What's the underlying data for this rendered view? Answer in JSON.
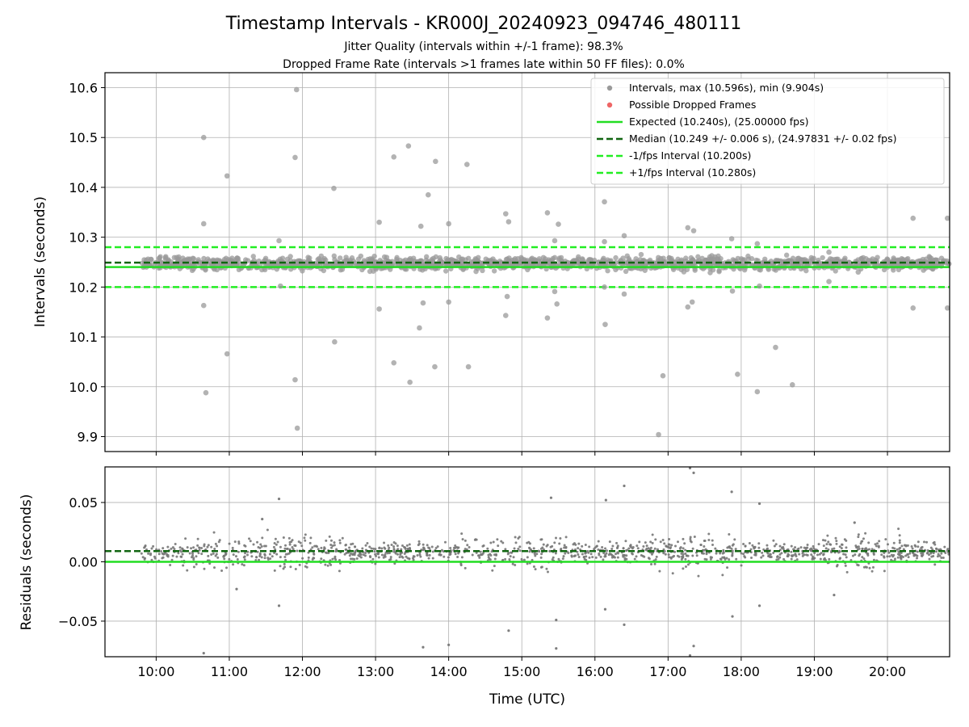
{
  "figure": {
    "title": "Timestamp Intervals - KR000J_20240923_094746_480111",
    "subtitle_line1": "Jitter Quality (intervals within +/-1 frame): 98.3%",
    "subtitle_line2": "Dropped Frame Rate (intervals >1 frames late within 50 FF files): 0.0%"
  },
  "chart_data": [
    {
      "type": "scatter",
      "ylabel": "Intervals (seconds)",
      "xlabel": "",
      "xlim": [
        9.3,
        20.85
      ],
      "ylim": [
        9.87,
        10.63
      ],
      "grid": true,
      "legend_position": "top-right",
      "x_ticks": [
        10,
        11,
        12,
        13,
        14,
        15,
        16,
        17,
        18,
        19,
        20
      ],
      "x_tick_labels": [
        "10:00",
        "11:00",
        "12:00",
        "13:00",
        "14:00",
        "15:00",
        "16:00",
        "17:00",
        "18:00",
        "19:00",
        "20:00"
      ],
      "y_ticks": [
        9.9,
        10.0,
        10.1,
        10.2,
        10.3,
        10.4,
        10.5,
        10.6
      ],
      "y_tick_labels": [
        "9.9",
        "10.0",
        "10.1",
        "10.2",
        "10.3",
        "10.4",
        "10.5",
        "10.6"
      ],
      "band": {
        "name": "Intervals (dense cluster)",
        "x_range": [
          9.8,
          20.85
        ],
        "y_center": 10.247,
        "y_spread": 0.012
      },
      "reference_lines": [
        {
          "name": "Expected (10.240s), (25.00000 fps)",
          "y": 10.24,
          "color": "#22dd22",
          "style": "solid"
        },
        {
          "name": "Median (10.249 +/- 0.006 s), (24.97831 +/- 0.02 fps)",
          "y": 10.249,
          "color": "#116611",
          "style": "dashed"
        },
        {
          "name": "-1/fps Interval (10.200s)",
          "y": 10.2,
          "color": "#22ee22",
          "style": "dashed"
        },
        {
          "name": "+1/fps Interval (10.280s)",
          "y": 10.28,
          "color": "#22ee22",
          "style": "dashed"
        }
      ],
      "series": [
        {
          "name": "Intervals, max (10.596s), min (9.904s)",
          "color": "#9a9a9a",
          "points": [
            [
              10.65,
              10.5
            ],
            [
              10.97,
              10.423
            ],
            [
              10.65,
              10.327
            ],
            [
              10.65,
              10.163
            ],
            [
              10.97,
              10.066
            ],
            [
              10.68,
              9.988
            ],
            [
              11.9,
              10.46
            ],
            [
              11.92,
              10.596
            ],
            [
              11.93,
              9.917
            ],
            [
              11.9,
              10.014
            ],
            [
              11.68,
              10.293
            ],
            [
              11.7,
              10.202
            ],
            [
              12.43,
              10.398
            ],
            [
              12.44,
              10.09
            ],
            [
              13.05,
              10.33
            ],
            [
              13.05,
              10.156
            ],
            [
              13.25,
              10.461
            ],
            [
              13.25,
              10.048
            ],
            [
              13.45,
              10.483
            ],
            [
              13.47,
              10.009
            ],
            [
              13.72,
              10.385
            ],
            [
              13.62,
              10.322
            ],
            [
              13.65,
              10.168
            ],
            [
              13.6,
              10.118
            ],
            [
              13.82,
              10.452
            ],
            [
              13.81,
              10.04
            ],
            [
              14.0,
              10.327
            ],
            [
              14.0,
              10.17
            ],
            [
              14.25,
              10.446
            ],
            [
              14.27,
              10.04
            ],
            [
              14.78,
              10.347
            ],
            [
              14.82,
              10.331
            ],
            [
              14.8,
              10.181
            ],
            [
              14.78,
              10.143
            ],
            [
              15.35,
              10.349
            ],
            [
              15.5,
              10.326
            ],
            [
              15.45,
              10.293
            ],
            [
              15.45,
              10.191
            ],
            [
              15.48,
              10.166
            ],
            [
              15.35,
              10.138
            ],
            [
              16.13,
              10.371
            ],
            [
              16.13,
              10.291
            ],
            [
              16.13,
              10.2
            ],
            [
              16.14,
              10.125
            ],
            [
              16.4,
              10.303
            ],
            [
              16.4,
              10.186
            ],
            [
              16.87,
              9.904
            ],
            [
              16.93,
              10.022
            ],
            [
              17.27,
              10.319
            ],
            [
              17.35,
              10.313
            ],
            [
              17.33,
              10.17
            ],
            [
              17.27,
              10.16
            ],
            [
              17.87,
              10.297
            ],
            [
              17.88,
              10.192
            ],
            [
              17.95,
              10.025
            ],
            [
              18.22,
              10.287
            ],
            [
              18.25,
              10.202
            ],
            [
              18.22,
              9.99
            ],
            [
              18.47,
              10.079
            ],
            [
              18.7,
              10.004
            ],
            [
              19.2,
              10.27
            ],
            [
              19.2,
              10.211
            ],
            [
              19.6,
              10.23
            ],
            [
              20.35,
              10.338
            ],
            [
              20.35,
              10.158
            ],
            [
              20.82,
              10.338
            ],
            [
              20.82,
              10.158
            ]
          ]
        },
        {
          "name": "Possible Dropped Frames",
          "color": "#ee6666",
          "points": []
        }
      ]
    },
    {
      "type": "scatter",
      "ylabel": "Residuals (seconds)",
      "xlabel": "Time (UTC)",
      "xlim": [
        9.3,
        20.85
      ],
      "ylim": [
        -0.08,
        0.08
      ],
      "grid": true,
      "x_ticks": [
        10,
        11,
        12,
        13,
        14,
        15,
        16,
        17,
        18,
        19,
        20
      ],
      "x_tick_labels": [
        "10:00",
        "11:00",
        "12:00",
        "13:00",
        "14:00",
        "15:00",
        "16:00",
        "17:00",
        "18:00",
        "19:00",
        "20:00"
      ],
      "y_ticks": [
        -0.05,
        0.0,
        0.05
      ],
      "y_tick_labels": [
        "−0.05",
        "0.00",
        "0.05"
      ],
      "band": {
        "name": "Residuals (dense cluster)",
        "x_range": [
          9.8,
          20.85
        ],
        "y_center": 0.008,
        "y_spread": 0.008
      },
      "reference_lines": [
        {
          "name": "zero",
          "y": 0.0,
          "color": "#22dd22",
          "style": "solid"
        },
        {
          "name": "median offset",
          "y": 0.009,
          "color": "#116611",
          "style": "dashed"
        }
      ],
      "series": [
        {
          "name": "Residual outliers",
          "color": "#777777",
          "points": [
            [
              10.65,
              -0.077
            ],
            [
              11.1,
              -0.023
            ],
            [
              11.45,
              0.036
            ],
            [
              11.68,
              0.053
            ],
            [
              11.68,
              -0.037
            ],
            [
              13.65,
              -0.072
            ],
            [
              14.0,
              -0.07
            ],
            [
              14.82,
              -0.058
            ],
            [
              15.4,
              0.054
            ],
            [
              15.47,
              -0.049
            ],
            [
              15.47,
              -0.073
            ],
            [
              16.15,
              0.052
            ],
            [
              16.14,
              -0.04
            ],
            [
              16.4,
              0.064
            ],
            [
              16.4,
              -0.053
            ],
            [
              17.3,
              0.079
            ],
            [
              17.35,
              0.075
            ],
            [
              17.3,
              -0.079
            ],
            [
              17.35,
              -0.071
            ],
            [
              17.87,
              0.059
            ],
            [
              17.88,
              -0.046
            ],
            [
              18.25,
              0.049
            ],
            [
              18.25,
              -0.037
            ],
            [
              19.27,
              -0.028
            ],
            [
              19.55,
              0.033
            ]
          ]
        }
      ]
    }
  ]
}
